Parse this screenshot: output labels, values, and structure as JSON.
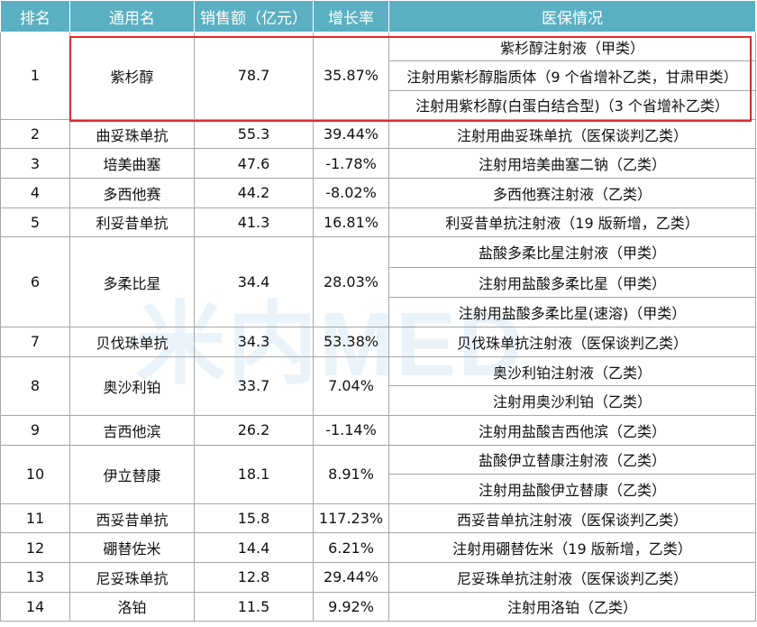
{
  "headers": [
    "排名",
    "通用名",
    "销售额（亿元）",
    "增长率",
    "医保情况"
  ],
  "watermark": "米内MED",
  "rows": [
    {
      "rank": "1",
      "name": "紫杉醇",
      "sales": "78.7",
      "growth": "35.87%",
      "insurance": [
        "紫杉醇注射液（甲类）",
        "注射用紫杉醇脂质体（9 个省增补乙类，甘肃甲类）",
        "注射用紫杉醇(白蛋白结合型)（3 个省增补乙类）"
      ]
    },
    {
      "rank": "2",
      "name": "曲妥珠单抗",
      "sales": "55.3",
      "growth": "39.44%",
      "insurance": [
        "注射用曲妥珠单抗（医保谈判乙类）"
      ]
    },
    {
      "rank": "3",
      "name": "培美曲塞",
      "sales": "47.6",
      "growth": "-1.78%",
      "insurance": [
        "注射用培美曲塞二钠（乙类）"
      ]
    },
    {
      "rank": "4",
      "name": "多西他赛",
      "sales": "44.2",
      "growth": "-8.02%",
      "insurance": [
        "多西他赛注射液（乙类）"
      ]
    },
    {
      "rank": "5",
      "name": "利妥昔单抗",
      "sales": "41.3",
      "growth": "16.81%",
      "insurance": [
        "利妥昔单抗注射液（19 版新增，乙类）"
      ]
    },
    {
      "rank": "6",
      "name": "多柔比星",
      "sales": "34.4",
      "growth": "28.03%",
      "insurance": [
        "盐酸多柔比星注射液（甲类）",
        "注射用盐酸多柔比星（甲类）",
        "注射用盐酸多柔比星(速溶)（甲类）"
      ]
    },
    {
      "rank": "7",
      "name": "贝伐珠单抗",
      "sales": "34.3",
      "growth": "53.38%",
      "insurance": [
        "贝伐珠单抗注射液（医保谈判乙类）"
      ]
    },
    {
      "rank": "8",
      "name": "奥沙利铂",
      "sales": "33.7",
      "growth": "7.04%",
      "insurance": [
        "奥沙利铂注射液（乙类）",
        "注射用奥沙利铂（乙类）"
      ]
    },
    {
      "rank": "9",
      "name": "吉西他滨",
      "sales": "26.2",
      "growth": "-1.14%",
      "insurance": [
        "注射用盐酸吉西他滨（乙类）"
      ]
    },
    {
      "rank": "10",
      "name": "伊立替康",
      "sales": "18.1",
      "growth": "8.91%",
      "insurance": [
        "盐酸伊立替康注射液（乙类）",
        "注射用盐酸伊立替康（乙类）"
      ]
    },
    {
      "rank": "11",
      "name": "西妥昔单抗",
      "sales": "15.8",
      "growth": "117.23%",
      "insurance": [
        "西妥昔单抗注射液（医保谈判乙类）"
      ]
    },
    {
      "rank": "12",
      "name": "硼替佐米",
      "sales": "14.4",
      "growth": "6.21%",
      "insurance": [
        "注射用硼替佐米（19 版新增，乙类）"
      ]
    },
    {
      "rank": "13",
      "name": "尼妥珠单抗",
      "sales": "12.8",
      "growth": "29.44%",
      "insurance": [
        "尼妥珠单抗注射液（医保谈判乙类）"
      ]
    },
    {
      "rank": "14",
      "name": "洛铂",
      "sales": "11.5",
      "growth": "9.92%",
      "insurance": [
        "注射用洛铂（乙类）"
      ]
    }
  ]
}
